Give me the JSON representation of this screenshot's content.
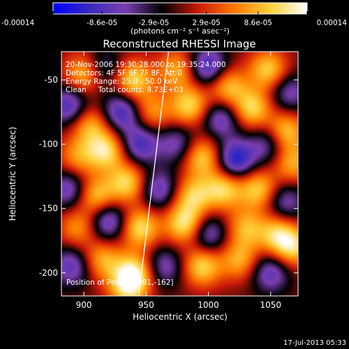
{
  "chart_data": {
    "type": "heatmap",
    "title": "Reconstructed RHESSI Image",
    "xlabel": "Heliocentric X (arcsec)",
    "ylabel": "Heliocentric Y (arcsec)",
    "xlim": [
      882,
      1072
    ],
    "ylim": [
      -218,
      -28
    ],
    "x_ticks": [
      "900",
      "950",
      "1000",
      "1050"
    ],
    "x_tick_values": [
      900,
      950,
      1000,
      1050
    ],
    "y_ticks": [
      "-50",
      "-100",
      "-150",
      "-200"
    ],
    "y_tick_values": [
      -50,
      -100,
      -150,
      -200
    ],
    "colorbar": {
      "min": -0.00014,
      "max": 0.00014,
      "tick_labels": [
        "-0.00014",
        "-8.6e-05",
        "-2.9e-05",
        "2.9e-05",
        "8.6e-05",
        "0.00014"
      ],
      "tick_values": [
        -0.00014,
        -8.6e-05,
        -2.9e-05,
        2.9e-05,
        8.6e-05,
        0.00014
      ],
      "units": "(photons cm⁻² s⁻¹ asec⁻²)",
      "colormap": [
        "#0000ff",
        "#3a2bbd",
        "#7a3fb0",
        "#000000",
        "#cc1a0a",
        "#ff7a00",
        "#ffd23a",
        "#ffffff"
      ]
    },
    "annotations": [
      "20-Nov-2006 19:30:28.000 to 19:35:24.000",
      "Detectors: 4F 5F 6F 7F 8F, Att 0",
      "Energy Range: 25.0 - 50.0 keV",
      "Clean     Total counts: 8.73E+03"
    ],
    "peak_label": "Position of Peak = [981,-162]",
    "peak": [
      981,
      -162
    ],
    "limb_line": [
      [
        944,
        -218
      ],
      [
        968,
        -28
      ]
    ],
    "timestamp": "17-Jul-2013 05:33",
    "blobs": [
      {
        "x": 900,
        "y": -45,
        "v": 0.8
      },
      {
        "x": 915,
        "y": -40,
        "v": -0.5
      },
      {
        "x": 940,
        "y": -50,
        "v": 0.9
      },
      {
        "x": 975,
        "y": -42,
        "v": 0.7
      },
      {
        "x": 1000,
        "y": -40,
        "v": -0.9
      },
      {
        "x": 1015,
        "y": -55,
        "v": 0.8
      },
      {
        "x": 1048,
        "y": -42,
        "v": 0.85
      },
      {
        "x": 1065,
        "y": -60,
        "v": -0.6
      },
      {
        "x": 888,
        "y": -70,
        "v": -0.8
      },
      {
        "x": 905,
        "y": -85,
        "v": 0.7
      },
      {
        "x": 930,
        "y": -75,
        "v": -0.85
      },
      {
        "x": 955,
        "y": -75,
        "v": 0.6
      },
      {
        "x": 985,
        "y": -70,
        "v": 0.9
      },
      {
        "x": 1010,
        "y": -80,
        "v": -0.7
      },
      {
        "x": 1035,
        "y": -72,
        "v": 0.9
      },
      {
        "x": 1062,
        "y": -90,
        "v": 0.85
      },
      {
        "x": 895,
        "y": -110,
        "v": 0.6
      },
      {
        "x": 918,
        "y": -105,
        "v": 0.95
      },
      {
        "x": 945,
        "y": -100,
        "v": -0.8
      },
      {
        "x": 975,
        "y": -100,
        "v": -0.6
      },
      {
        "x": 995,
        "y": -110,
        "v": 0.85
      },
      {
        "x": 1022,
        "y": -112,
        "v": -1.0
      },
      {
        "x": 1048,
        "y": -100,
        "v": -0.6
      },
      {
        "x": 1068,
        "y": -115,
        "v": 0.7
      },
      {
        "x": 888,
        "y": -135,
        "v": -0.7
      },
      {
        "x": 910,
        "y": -140,
        "v": 0.8
      },
      {
        "x": 935,
        "y": -130,
        "v": 0.9
      },
      {
        "x": 960,
        "y": -135,
        "v": -0.7
      },
      {
        "x": 988,
        "y": -140,
        "v": 0.8
      },
      {
        "x": 1012,
        "y": -135,
        "v": 0.9
      },
      {
        "x": 1040,
        "y": -135,
        "v": 0.85
      },
      {
        "x": 1062,
        "y": -145,
        "v": -0.6
      },
      {
        "x": 895,
        "y": -165,
        "v": 0.6
      },
      {
        "x": 920,
        "y": -160,
        "v": -0.8
      },
      {
        "x": 945,
        "y": -165,
        "v": 0.95
      },
      {
        "x": 981,
        "y": -162,
        "v": 1.0
      },
      {
        "x": 1000,
        "y": -170,
        "v": -0.7
      },
      {
        "x": 1030,
        "y": -165,
        "v": 0.7
      },
      {
        "x": 1055,
        "y": -170,
        "v": 0.8
      },
      {
        "x": 890,
        "y": -195,
        "v": -0.7
      },
      {
        "x": 915,
        "y": -190,
        "v": 0.7
      },
      {
        "x": 940,
        "y": -200,
        "v": 0.95
      },
      {
        "x": 965,
        "y": -195,
        "v": -0.6
      },
      {
        "x": 995,
        "y": -195,
        "v": 0.9
      },
      {
        "x": 1025,
        "y": -190,
        "v": 0.7
      },
      {
        "x": 1050,
        "y": -200,
        "v": -0.7
      },
      {
        "x": 1068,
        "y": -180,
        "v": 0.85
      },
      {
        "x": 935,
        "y": -212,
        "v": 0.8
      }
    ]
  }
}
